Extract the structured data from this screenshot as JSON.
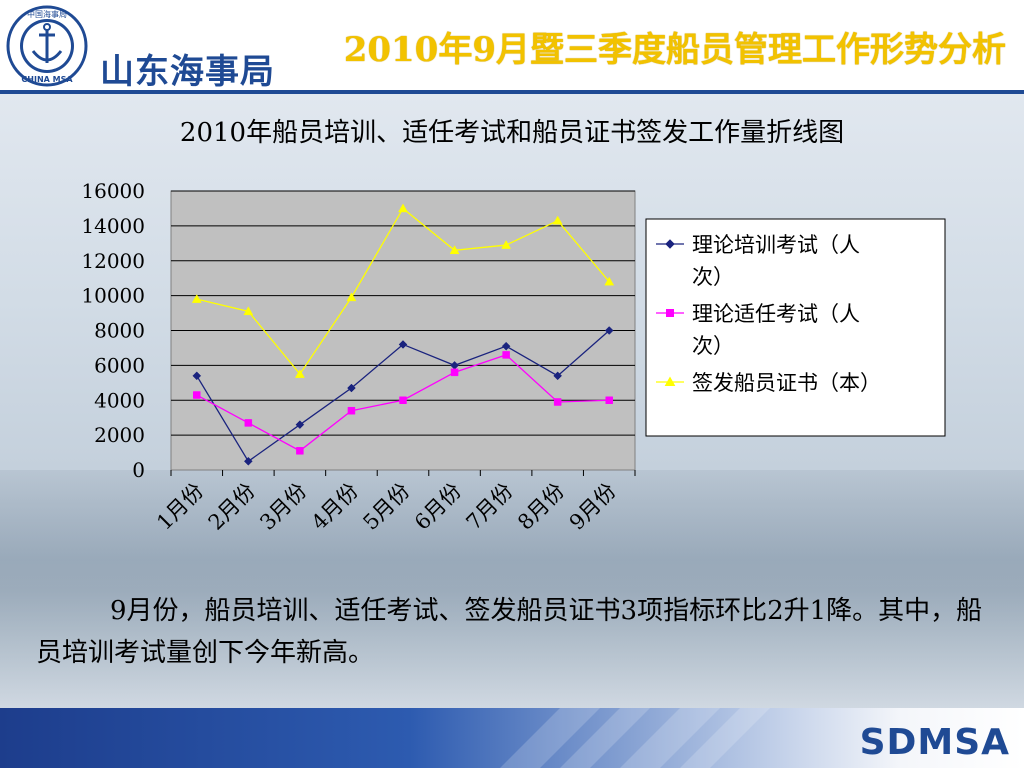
{
  "header": {
    "org_name": "山东海事局",
    "logo_top_text": "中国海事局",
    "logo_bottom_text": "CHINA MSA",
    "title": "2010年9月暨三季度船员管理工作形势分析"
  },
  "chart_data": {
    "type": "line",
    "title": "2010年船员培训、适任考试和船员证书签发工作量折线图",
    "categories": [
      "1月份",
      "2月份",
      "3月份",
      "4月份",
      "5月份",
      "6月份",
      "7月份",
      "8月份",
      "9月份"
    ],
    "ylim": [
      0,
      16000
    ],
    "yticks": [
      "0",
      "2000",
      "4000",
      "6000",
      "8000",
      "10000",
      "12000",
      "14000",
      "16000"
    ],
    "grid": true,
    "legend_position": "right",
    "series": [
      {
        "name": "理论培训考试（人次）",
        "marker": "diamond",
        "color": "#1a237e",
        "values": [
          5400,
          500,
          2600,
          4700,
          7200,
          6000,
          7100,
          5400,
          8000
        ]
      },
      {
        "name": "理论适任考试（人次）",
        "marker": "square",
        "color": "#ff00ff",
        "values": [
          4300,
          2700,
          1100,
          3400,
          4000,
          5600,
          6600,
          3900,
          4000
        ]
      },
      {
        "name": "签发船员证书（本）",
        "marker": "triangle",
        "color": "#ffff00",
        "values": [
          9800,
          9100,
          5500,
          9900,
          15000,
          12600,
          12900,
          14300,
          10800
        ]
      }
    ]
  },
  "summary": {
    "text": "9月份，船员培训、适任考试、签发船员证书3项指标环比2升1降。其中，船员培训考试量创下今年新高。"
  },
  "footer": {
    "logo_text": "SDMSA"
  },
  "colors": {
    "brand_blue": "#1f4a94",
    "title_gold": "#f2c200",
    "plot_bg": "#c0c0c0"
  }
}
